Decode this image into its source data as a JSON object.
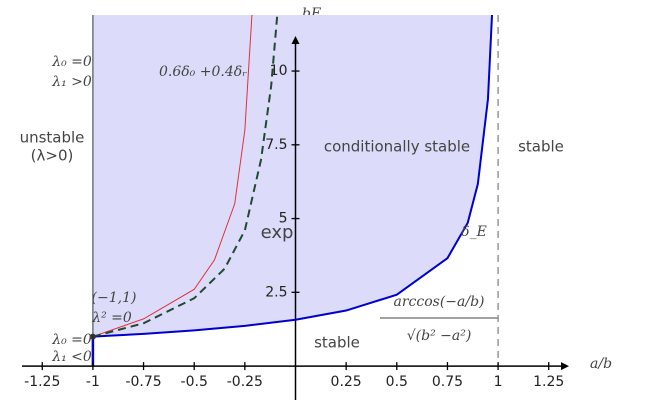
{
  "chart_data": {
    "type": "line",
    "x_label": "a/b",
    "y_label": "bE",
    "xlim": [
      -1.35,
      1.35
    ],
    "ylim": [
      -1.15,
      11.9
    ],
    "xticks": [
      -1.25,
      -1,
      -0.75,
      -0.5,
      -0.25,
      0.25,
      0.5,
      0.75,
      1,
      1.25
    ],
    "yticks": [
      2.5,
      5,
      7.5,
      10
    ],
    "fill_color": "#dcdcfa",
    "series": [
      {
        "color": "#0000cc",
        "style": "solid",
        "x": [
          -1,
          -0.9,
          -0.75,
          -0.5,
          -0.25,
          0,
          0.25,
          0.5,
          0.75,
          0.85,
          0.9,
          0.95,
          0.97
        ],
        "values": [
          1,
          1.035,
          1.093,
          1.209,
          1.361,
          1.571,
          1.883,
          2.418,
          3.657,
          4.852,
          6.17,
          9.05,
          11.9
        ]
      },
      {
        "color": "#e0303a",
        "style": "solid",
        "x": [
          -1,
          -0.75,
          -0.5,
          -0.4,
          -0.3,
          -0.25,
          -0.215
        ],
        "values": [
          1,
          1.6,
          2.6,
          3.6,
          5.5,
          8.0,
          11.9
        ]
      },
      {
        "color": "#1f4a2f",
        "style": "dashed",
        "x": [
          -1,
          -0.75,
          -0.5,
          -0.35,
          -0.25,
          -0.17,
          -0.12,
          -0.09
        ],
        "values": [
          1,
          1.45,
          2.3,
          3.3,
          4.6,
          7,
          9.5,
          11.9
        ]
      }
    ],
    "annotations": [
      "unstable",
      "(λ>0)",
      "λ₀ =0",
      "λ₁ >0",
      "0.6δ₀ +0.4δᵣ",
      "conditionally stable",
      "stable",
      "exp",
      "δ_E",
      "(−1,1)",
      "λ² =0",
      "λ₀ =0",
      "λ₁ <0",
      "stable",
      "arccos(−a/b)",
      "√(b² −a²)"
    ]
  }
}
